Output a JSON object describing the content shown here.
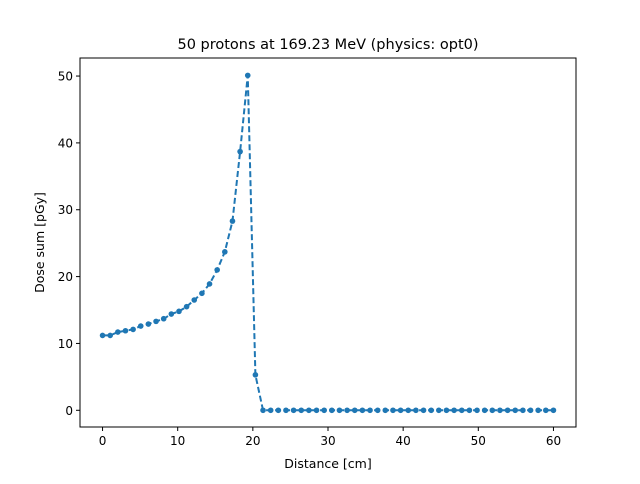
{
  "chart_data": {
    "type": "line",
    "title": "50 protons at 169.23 MeV (physics: opt0)",
    "xlabel": "Distance [cm]",
    "ylabel": "Dose sum [pGy]",
    "xlim": [
      -3,
      63
    ],
    "ylim": [
      -2.5,
      52.7
    ],
    "xticks": [
      0,
      10,
      20,
      30,
      40,
      50,
      60
    ],
    "yticks": [
      0,
      10,
      20,
      30,
      40,
      50
    ],
    "grid": false,
    "legend": "none",
    "series": [
      {
        "line_style": "dashed",
        "marker": "circle",
        "color": "#1f77b4",
        "x": [
          0,
          1.017,
          2.034,
          3.051,
          4.068,
          5.085,
          6.102,
          7.119,
          8.136,
          9.153,
          10.17,
          11.186,
          12.203,
          13.22,
          14.237,
          15.254,
          16.271,
          17.288,
          18.305,
          19.322,
          20.339,
          21.356,
          22.373,
          23.39,
          24.407,
          25.424,
          26.441,
          27.458,
          28.475,
          29.492,
          30.508,
          31.525,
          32.542,
          33.559,
          34.576,
          35.593,
          36.61,
          37.627,
          38.644,
          39.661,
          40.678,
          41.695,
          42.712,
          43.729,
          44.746,
          45.763,
          46.78,
          47.797,
          48.814,
          49.831,
          50.847,
          51.864,
          52.881,
          53.898,
          54.915,
          55.932,
          56.949,
          57.966,
          58.983,
          60
        ],
        "y": [
          11.2,
          11.2,
          11.7,
          11.9,
          12.1,
          12.6,
          12.9,
          13.3,
          13.7,
          14.4,
          14.8,
          15.5,
          16.5,
          17.5,
          18.9,
          21.0,
          23.7,
          28.3,
          38.7,
          50.1,
          5.3,
          0,
          0,
          0,
          0,
          0,
          0,
          0,
          0,
          0,
          0,
          0,
          0,
          0,
          0,
          0,
          0,
          0,
          0,
          0,
          0,
          0,
          0,
          0,
          0,
          0,
          0,
          0,
          0,
          0,
          0,
          0,
          0,
          0,
          0,
          0,
          0,
          0,
          0,
          0
        ]
      }
    ]
  }
}
